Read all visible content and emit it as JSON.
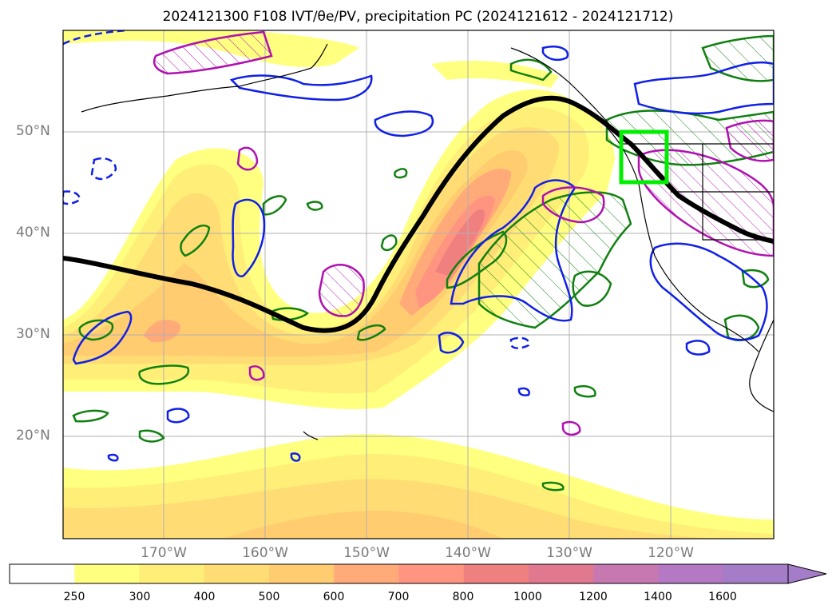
{
  "title": "2024121300 F108 IVT/θe/PV, precipitation PC (2024121612 - 2024121712)",
  "lat_labels": [
    "50°N",
    "40°N",
    "30°N",
    "20°N"
  ],
  "lon_labels": [
    "170°W",
    "160°W",
    "150°W",
    "140°W",
    "130°W",
    "120°W"
  ],
  "colorbar": {
    "ticks": [
      "250",
      "300",
      "400",
      "500",
      "600",
      "700",
      "800",
      "1000",
      "1200",
      "1400",
      "1600"
    ],
    "colors": [
      "#ffffff",
      "#ffff80",
      "#ffee78",
      "#ffdd74",
      "#ffcc70",
      "#ffaa78",
      "#ff9480",
      "#f08080",
      "#e07890",
      "#c878b0",
      "#b478c4",
      "#a47cc8"
    ],
    "extend": "max"
  },
  "map": {
    "extent_lon": [
      -180,
      -110
    ],
    "extent_lat": [
      10,
      60
    ],
    "features": [
      "IVT shading",
      "theta-e contour (black)",
      "PV contours (blue/green/magenta)",
      "precipitation PC target box (lime)",
      "coastlines",
      "state borders"
    ],
    "colors": {
      "jet_line": "#000000",
      "blue_contour": "#1020e6",
      "green_contour": "#108010",
      "magenta_contour": "#b010b0",
      "target_box": "#00ee00",
      "gridline": "#b0b0b0"
    }
  }
}
